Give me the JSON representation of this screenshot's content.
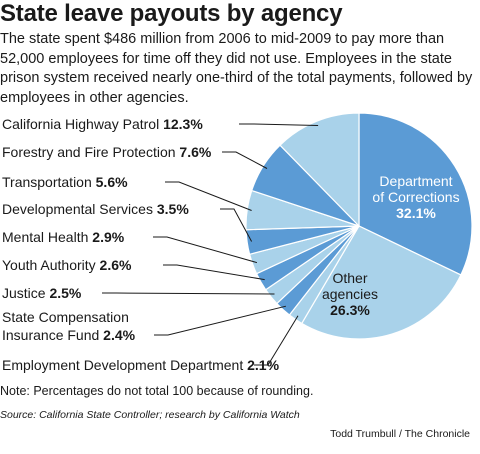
{
  "header": {
    "title": "State leave payouts by agency",
    "subtitle": "The state spent $486 million from 2006 to mid-2009 to pay more than 52,000 employees for time off they did not use. Employees in the state prison system received nearly one-third of the total payments, followed by employees in other agencies."
  },
  "footer": {
    "note": "Note: Percentages do not total 100 because of rounding.",
    "source": "Source: California State Controller; research by California Watch",
    "credit": "Todd Trumbull / The Chronicle"
  },
  "colors": {
    "dark_blue": "#5b9bd5",
    "light_blue": "#a9d2ea",
    "inside_label_dark": "#ffffff",
    "inside_label_light": "#1a1a1a"
  },
  "chart_data": {
    "type": "pie",
    "title": "State leave payouts by agency",
    "unit": "%",
    "slices": [
      {
        "label": "Department of Corrections",
        "label_lines": [
          "Department",
          "of Corrections"
        ],
        "value": 32.1,
        "display": "32.1%",
        "color": "#5b9bd5",
        "label_placement": "inside"
      },
      {
        "label": "Other agencies",
        "label_lines": [
          "Other",
          "agencies"
        ],
        "value": 26.3,
        "display": "26.3%",
        "color": "#a9d2ea",
        "label_placement": "inside"
      },
      {
        "label": "Employment Development Department",
        "label_lines": [
          "Employment Development Department"
        ],
        "value": 2.1,
        "display": "2.1%",
        "color": "#a9d2ea",
        "label_placement": "outside"
      },
      {
        "label": "State Compensation Insurance Fund",
        "label_lines": [
          "State Compensation",
          "Insurance Fund"
        ],
        "value": 2.4,
        "display": "2.4%",
        "color": "#5b9bd5",
        "label_placement": "outside"
      },
      {
        "label": "Justice",
        "label_lines": [
          "Justice"
        ],
        "value": 2.5,
        "display": "2.5%",
        "color": "#a9d2ea",
        "label_placement": "outside"
      },
      {
        "label": "Youth Authority",
        "label_lines": [
          "Youth Authority"
        ],
        "value": 2.6,
        "display": "2.6%",
        "color": "#5b9bd5",
        "label_placement": "outside"
      },
      {
        "label": "Mental Health",
        "label_lines": [
          "Mental Health"
        ],
        "value": 2.9,
        "display": "2.9%",
        "color": "#a9d2ea",
        "label_placement": "outside"
      },
      {
        "label": "Developmental Services",
        "label_lines": [
          "Developmental Services"
        ],
        "value": 3.5,
        "display": "3.5%",
        "color": "#5b9bd5",
        "label_placement": "outside"
      },
      {
        "label": "Transportation",
        "label_lines": [
          "Transportation"
        ],
        "value": 5.6,
        "display": "5.6%",
        "color": "#a9d2ea",
        "label_placement": "outside"
      },
      {
        "label": "Forestry and Fire Protection",
        "label_lines": [
          "Forestry and Fire Protection"
        ],
        "value": 7.6,
        "display": "7.6%",
        "color": "#5b9bd5",
        "label_placement": "outside"
      },
      {
        "label": "California Highway Patrol",
        "label_lines": [
          "California Highway Patrol"
        ],
        "value": 12.3,
        "display": "12.3%",
        "color": "#a9d2ea",
        "label_placement": "outside"
      }
    ]
  }
}
